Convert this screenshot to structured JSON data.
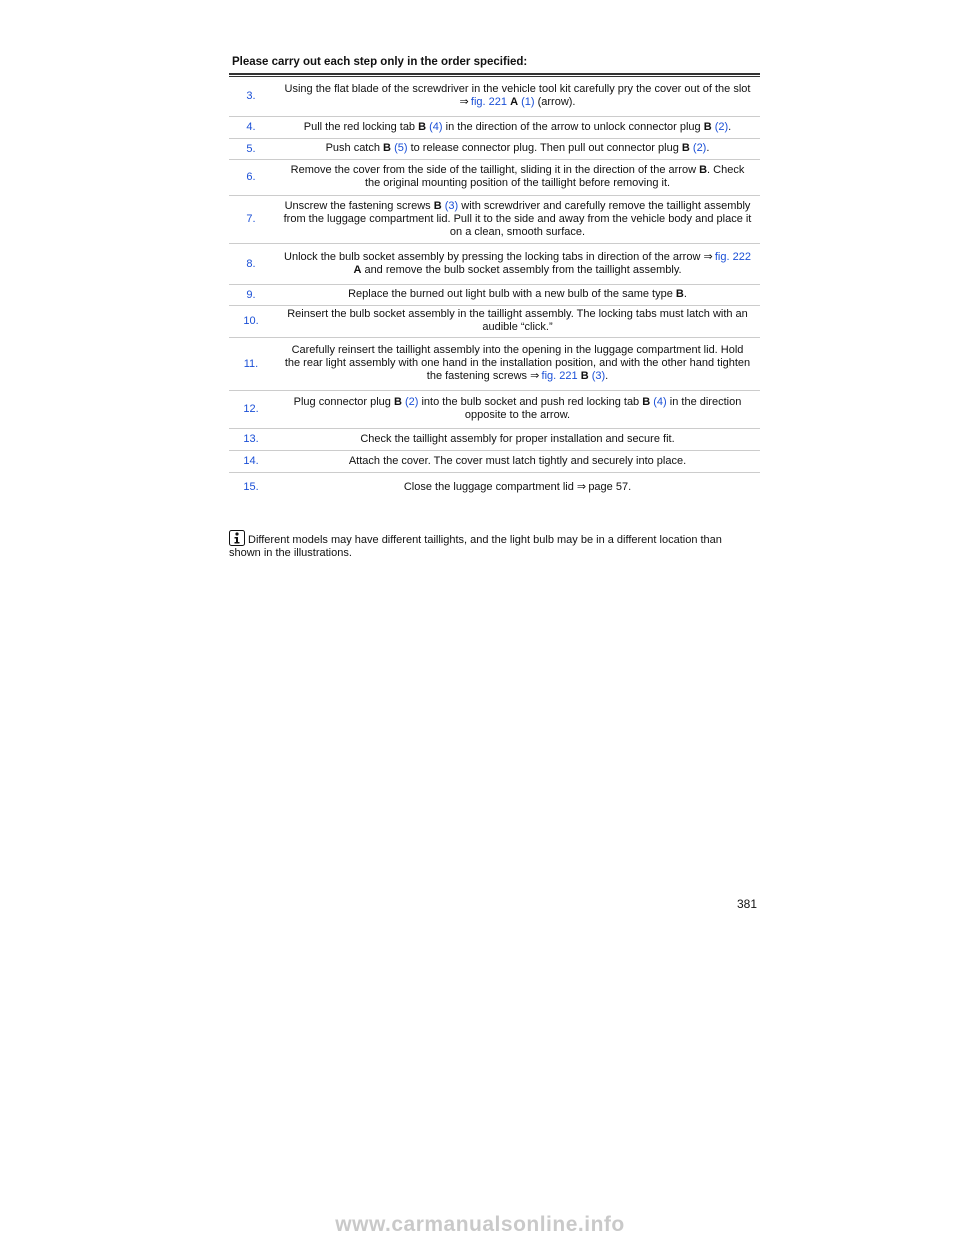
{
  "header": {
    "title": "Please carry out each step only in the order specified:"
  },
  "steps": [
    {
      "number": "3.",
      "text": [
        "Using the flat blade of the screwdriver in the vehicle tool kit carefully pry the cover out of the slot ⇒ ",
        {
          "link": "fig. 221"
        },
        " ",
        {
          "bold": "A"
        },
        " ",
        {
          "link": "(1)"
        },
        " (arrow)."
      ]
    },
    {
      "number": "4.",
      "text": [
        "Pull the red locking tab ",
        {
          "bold": "B"
        },
        " ",
        {
          "link": "(4)"
        },
        " in the direction of the arrow to unlock connector plug ",
        {
          "bold": "B"
        },
        " ",
        {
          "link": "(2)"
        },
        "."
      ]
    },
    {
      "number": "5.",
      "text": [
        "Push catch ",
        {
          "bold": "B"
        },
        " ",
        {
          "link": "(5)"
        },
        " to release connector plug. Then pull out connector plug ",
        {
          "bold": "B"
        },
        " ",
        {
          "link": "(2)"
        },
        "."
      ]
    },
    {
      "number": "6.",
      "text": [
        "Remove the cover from the side of the taillight, sliding it in the direction of the arrow ",
        {
          "bold": "B"
        },
        ". Check the original mounting position of the taillight before removing it."
      ]
    },
    {
      "number": "7.",
      "text": [
        "Unscrew the fastening screws ",
        {
          "bold": "B"
        },
        " ",
        {
          "link": "(3)"
        },
        " with screwdriver and carefully remove the taillight assembly from the luggage compartment lid. Pull it to the side and away from the vehicle body and place it on a clean, smooth surface."
      ]
    },
    {
      "number": "8.",
      "text": [
        "Unlock the bulb socket assembly by pressing the locking tabs in direction of the arrow ⇒ ",
        {
          "link": "fig. 222"
        },
        " ",
        {
          "bold": "A"
        },
        " and remove the bulb socket assembly from the taillight assembly."
      ]
    },
    {
      "number": "9.",
      "text": [
        "Replace the burned out light bulb with a new bulb of the same type ",
        {
          "bold": "B"
        },
        "."
      ]
    },
    {
      "number": "10.",
      "text": [
        "Reinsert the bulb socket assembly in the taillight assembly. The locking tabs must latch with an audible “click.”"
      ]
    },
    {
      "number": "11.",
      "text": [
        "Carefully reinsert the taillight assembly into the opening in the luggage compartment lid. Hold the rear light assembly with one hand in the installation position, and with the other hand tighten the fastening screws ⇒ ",
        {
          "link": "fig. 221"
        },
        " ",
        {
          "bold": "B"
        },
        " ",
        {
          "link": "(3)"
        },
        "."
      ]
    },
    {
      "number": "12.",
      "text": [
        "Plug connector plug ",
        {
          "bold": "B"
        },
        " ",
        {
          "link": "(2)"
        },
        " into the bulb socket and push red locking tab ",
        {
          "bold": "B"
        },
        " ",
        {
          "link": "(4)"
        },
        " in the direction opposite to the arrow."
      ]
    },
    {
      "number": "13.",
      "text": [
        "Check the taillight assembly for proper installation and secure fit."
      ]
    },
    {
      "number": "14.",
      "text": [
        "Attach the cover. The cover must latch tightly and securely into place."
      ]
    },
    {
      "number": "15.",
      "text": [
        "Close the luggage compartment lid ⇒ page 57."
      ]
    }
  ],
  "note": "Different models may have different taillights, and the light bulb may be in a different location than shown in the illustrations.",
  "page_number": "381",
  "watermark": "www.carmanualsonline.info"
}
